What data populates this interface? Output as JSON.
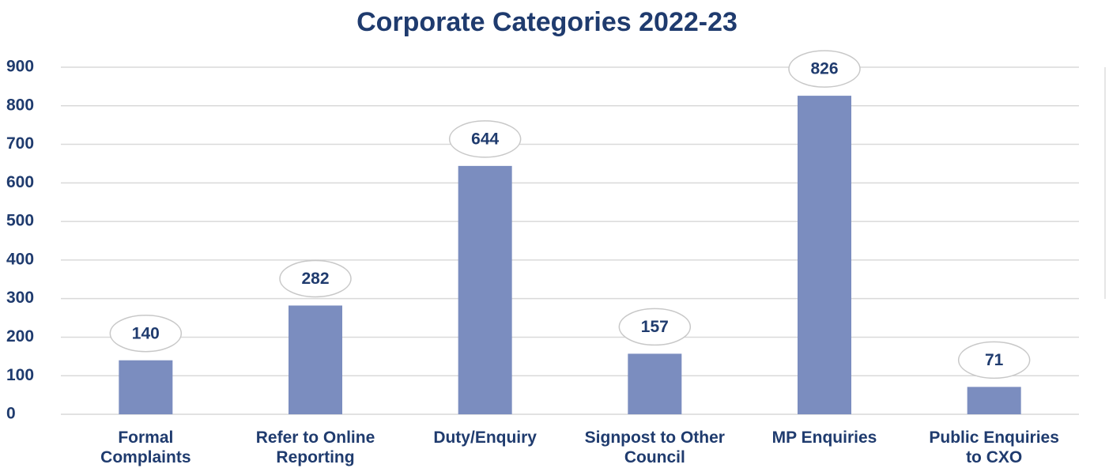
{
  "chart_data": {
    "type": "bar",
    "title": "Corporate Categories 2022-23",
    "categories": [
      "Formal\nComplaints",
      "Refer to Online\nReporting",
      "Duty/Enquiry",
      "Signpost to Other\nCouncil",
      "MP Enquiries",
      "Public Enquiries\nto CXO"
    ],
    "values": [
      140,
      282,
      644,
      157,
      826,
      71
    ],
    "color": "#7b8dbf",
    "ylim": [
      0,
      900
    ],
    "yticks": [
      0,
      100,
      200,
      300,
      400,
      500,
      600,
      700,
      800,
      900
    ],
    "grid": true
  }
}
